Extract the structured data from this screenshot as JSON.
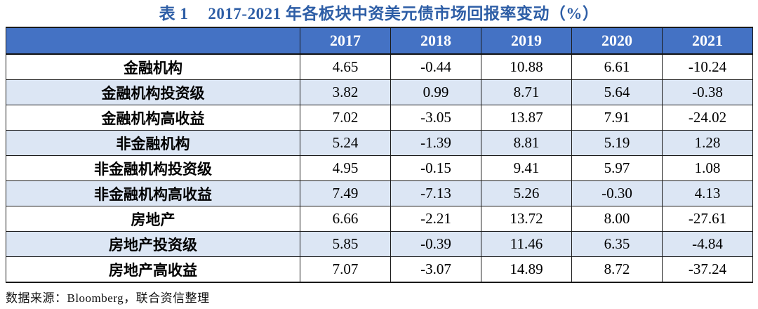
{
  "title": {
    "prefix": "表 1",
    "text": "2017-2021 年各板块中资美元债市场回报率变动（%）"
  },
  "table": {
    "corner_label": "",
    "columns": [
      "2017",
      "2018",
      "2019",
      "2020",
      "2021"
    ],
    "rows": [
      {
        "label": "金融机构",
        "values": [
          "4.65",
          "-0.44",
          "10.88",
          "6.61",
          "-10.24"
        ]
      },
      {
        "label": "金融机构投资级",
        "values": [
          "3.82",
          "0.99",
          "8.71",
          "5.64",
          "-0.38"
        ]
      },
      {
        "label": "金融机构高收益",
        "values": [
          "7.02",
          "-3.05",
          "13.87",
          "7.91",
          "-24.02"
        ]
      },
      {
        "label": "非金融机构",
        "values": [
          "5.24",
          "-1.39",
          "8.81",
          "5.19",
          "1.28"
        ]
      },
      {
        "label": "非金融机构投资级",
        "values": [
          "4.95",
          "-0.15",
          "9.41",
          "5.97",
          "1.08"
        ]
      },
      {
        "label": "非金融机构高收益",
        "values": [
          "7.49",
          "-7.13",
          "5.26",
          "-0.30",
          "4.13"
        ]
      },
      {
        "label": "房地产",
        "values": [
          "6.66",
          "-2.21",
          "13.72",
          "8.00",
          "-27.61"
        ]
      },
      {
        "label": "房地产投资级",
        "values": [
          "5.85",
          "-0.39",
          "11.46",
          "6.35",
          "-4.84"
        ]
      },
      {
        "label": "房地产高收益",
        "values": [
          "7.07",
          "-3.07",
          "14.89",
          "8.72",
          "-37.24"
        ]
      }
    ]
  },
  "footer": {
    "source_note": "数据来源：Bloomberg，联合资信整理"
  },
  "colors": {
    "header_bg": "#4472C4",
    "header_text": "#FFFFFF",
    "alt_row_bg": "#DCE6F4",
    "title_color": "#2E5EA6",
    "border": "#1A1A1A"
  }
}
